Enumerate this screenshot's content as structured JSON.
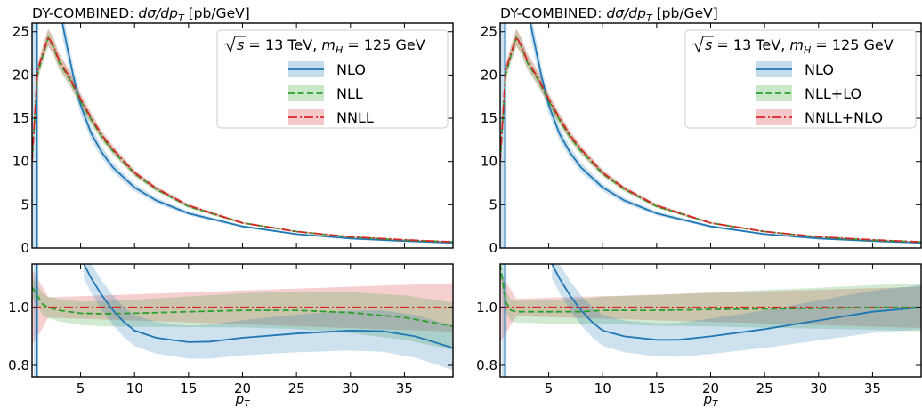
{
  "chart_data": [
    {
      "type": "line",
      "title": "DY-COMBINED: dσ/dp_T [pb/GeV]",
      "title_parts": {
        "pre": "DY-COMBINED: ",
        "num": "dσ/dp",
        "sub": "T",
        "units": " [pb/GeV]"
      },
      "annotation": "√s = 13 TeV,  m_H = 125 GeV",
      "annotation_parts": {
        "s": "s",
        "eq1": " = 13 TeV,  ",
        "m": "m",
        "msub": "H",
        "eq2": " = 125 GeV"
      },
      "legend_position": "top-right",
      "xlabel": "p_T",
      "xlabel_parts": {
        "main": "p",
        "sub": "T"
      },
      "xlim": [
        0.5,
        39.5
      ],
      "xticks": [
        5,
        10,
        15,
        20,
        25,
        30,
        35
      ],
      "main": {
        "ylim": [
          0,
          26
        ],
        "yticks": [
          0,
          5,
          10,
          15,
          20,
          25
        ],
        "series": [
          {
            "name": "NLO",
            "color": "#1f77b4",
            "dash": "solid",
            "x": [
              3.3,
              3.8,
              4.3,
              5,
              6,
              7,
              8,
              10,
              12,
              15,
              20,
              25,
              30,
              35,
              39.5
            ],
            "y": [
              26,
              23,
              20,
              16.5,
              13.2,
              11.0,
              9.3,
              7.0,
              5.5,
              4.0,
              2.5,
              1.6,
              1.1,
              0.8,
              0.6
            ]
          },
          {
            "name": "NLL",
            "color": "#2ca02c",
            "dash": "dashed",
            "x": [
              0.5,
              1,
              1.5,
              2,
              2.5,
              3,
              4,
              5,
              6,
              7,
              8,
              10,
              12,
              15,
              20,
              25,
              30,
              35,
              39.5
            ],
            "y": [
              10,
              20,
              22.3,
              24.3,
              23.2,
              21.5,
              19.5,
              17.0,
              14.8,
              12.8,
              11.2,
              8.6,
              6.8,
              4.8,
              2.9,
              1.9,
              1.25,
              0.9,
              0.7
            ]
          },
          {
            "name": "NNLL",
            "color": "#d62728",
            "dash": "dashdot",
            "x": [
              0.5,
              1,
              1.5,
              2,
              2.5,
              3,
              4,
              5,
              6,
              7,
              8,
              10,
              12,
              15,
              20,
              25,
              30,
              35,
              39.5
            ],
            "y": [
              10,
              20.5,
              22.5,
              24.4,
              23.3,
              21.7,
              19.7,
              17.2,
              15.0,
              13.0,
              11.4,
              8.7,
              6.9,
              4.9,
              2.9,
              1.9,
              1.3,
              0.95,
              0.7
            ]
          }
        ]
      },
      "ratio": {
        "ylim": [
          0.76,
          1.15
        ],
        "yticks": [
          0.8,
          1.0
        ],
        "series": [
          {
            "name": "NLO",
            "x": [
              5.3,
              6,
              7,
              8,
              9,
              10,
              12,
              15,
              17,
              20,
              25,
              30,
              33,
              36,
              39.5
            ],
            "y": [
              1.15,
              1.1,
              1.04,
              0.99,
              0.95,
              0.92,
              0.895,
              0.88,
              0.882,
              0.895,
              0.91,
              0.92,
              0.918,
              0.9,
              0.86
            ]
          },
          {
            "name": "NLL",
            "x": [
              0.5,
              1,
              1.5,
              2,
              3,
              5,
              7,
              10,
              15,
              20,
              25,
              30,
              35,
              39.5
            ],
            "y": [
              1.07,
              1.04,
              1.01,
              1.0,
              0.99,
              0.98,
              0.978,
              0.98,
              0.985,
              0.99,
              0.99,
              0.982,
              0.965,
              0.935
            ]
          },
          {
            "name": "NNLL",
            "x": [
              0.5,
              39.5
            ],
            "y": [
              1.0,
              1.0
            ]
          }
        ]
      }
    },
    {
      "type": "line",
      "title": "DY-COMBINED: dσ/dp_T [pb/GeV]",
      "title_parts": {
        "pre": "DY-COMBINED: ",
        "num": "dσ/dp",
        "sub": "T",
        "units": " [pb/GeV]"
      },
      "annotation": "√s = 13 TeV,  m_H = 125 GeV",
      "annotation_parts": {
        "s": "s",
        "eq1": " = 13 TeV,  ",
        "m": "m",
        "msub": "H",
        "eq2": " = 125 GeV"
      },
      "legend_position": "top-right",
      "xlabel": "p_T",
      "xlabel_parts": {
        "main": "p",
        "sub": "T"
      },
      "xlim": [
        0.5,
        39.5
      ],
      "xticks": [
        5,
        10,
        15,
        20,
        25,
        30,
        35
      ],
      "main": {
        "ylim": [
          0,
          26
        ],
        "yticks": [
          0,
          5,
          10,
          15,
          20,
          25
        ],
        "series": [
          {
            "name": "NLO",
            "color": "#1f77b4",
            "dash": "solid",
            "x": [
              3.3,
              3.8,
              4.3,
              5,
              6,
              7,
              8,
              10,
              12,
              15,
              20,
              25,
              30,
              35,
              39.5
            ],
            "y": [
              26,
              23,
              20,
              16.5,
              13.2,
              11.0,
              9.3,
              7.0,
              5.5,
              4.0,
              2.5,
              1.6,
              1.1,
              0.8,
              0.6
            ]
          },
          {
            "name": "NLL+LO",
            "color": "#2ca02c",
            "dash": "dashed",
            "x": [
              0.5,
              1,
              1.5,
              2,
              2.5,
              3,
              4,
              5,
              6,
              7,
              8,
              10,
              12,
              15,
              20,
              25,
              30,
              35,
              39.5
            ],
            "y": [
              10,
              20,
              22.3,
              24.3,
              23.2,
              21.5,
              19.5,
              17.0,
              14.8,
              12.8,
              11.2,
              8.6,
              6.8,
              4.8,
              2.9,
              1.9,
              1.25,
              0.9,
              0.7
            ]
          },
          {
            "name": "NNLL+NLO",
            "color": "#d62728",
            "dash": "dashdot",
            "x": [
              0.5,
              1,
              1.5,
              2,
              2.5,
              3,
              4,
              5,
              6,
              7,
              8,
              10,
              12,
              15,
              20,
              25,
              30,
              35,
              39.5
            ],
            "y": [
              10,
              20.5,
              22.5,
              24.4,
              23.3,
              21.7,
              19.7,
              17.2,
              15.0,
              13.0,
              11.4,
              8.7,
              6.9,
              4.9,
              2.9,
              1.9,
              1.3,
              0.95,
              0.7
            ]
          }
        ]
      },
      "ratio": {
        "ylim": [
          0.76,
          1.15
        ],
        "yticks": [
          0.8,
          1.0
        ],
        "series": [
          {
            "name": "NLO",
            "x": [
              5.3,
              6,
              7,
              8,
              9,
              10,
              12,
              15,
              17,
              20,
              25,
              30,
              35,
              39.5
            ],
            "y": [
              1.15,
              1.1,
              1.04,
              0.99,
              0.95,
              0.92,
              0.9,
              0.888,
              0.888,
              0.9,
              0.925,
              0.955,
              0.985,
              1.0
            ]
          },
          {
            "name": "NLL+LO",
            "x": [
              0.5,
              1,
              1.5,
              2,
              3,
              5,
              8,
              10,
              15,
              20,
              25,
              30,
              35,
              39.5
            ],
            "y": [
              1.15,
              1.02,
              0.99,
              0.985,
              0.985,
              0.985,
              0.985,
              0.99,
              0.99,
              0.993,
              0.995,
              0.997,
              1.0,
              1.0
            ]
          },
          {
            "name": "NNLL+NLO",
            "x": [
              0.5,
              39.5
            ],
            "y": [
              1.0,
              1.0
            ]
          }
        ]
      }
    }
  ]
}
